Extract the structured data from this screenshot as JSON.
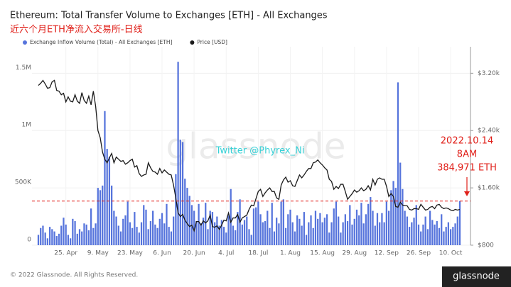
{
  "chart_data": {
    "type": "bar",
    "title": "Ethereum: Total Transfer Volume to Exchanges [ETH] - All Exchanges",
    "subtitle": "近六个月ETH净流入交易所-日线",
    "watermark": "glassnode",
    "overlay_text": "Twitter @Phyrex_Ni",
    "annotations": [
      "2022.10.14",
      "8AM",
      "384,971 ETH"
    ],
    "footer": "© 2022 Glassnode. All Rights Reserved.",
    "logo": "glassnode",
    "grid": true,
    "categories": [
      null,
      null,
      null,
      null,
      null,
      null,
      null,
      null,
      null,
      null,
      null,
      null,
      "25. Apr",
      null,
      null,
      null,
      null,
      null,
      null,
      null,
      null,
      null,
      null,
      null,
      null,
      null,
      "9. May",
      null,
      null,
      null,
      null,
      null,
      null,
      null,
      null,
      null,
      null,
      null,
      null,
      null,
      "23. May",
      null,
      null,
      null,
      null,
      null,
      null,
      null,
      null,
      null,
      null,
      null,
      null,
      null,
      "6. Jun",
      null,
      null,
      null,
      null,
      null,
      null,
      null,
      null,
      null,
      null,
      null,
      null,
      null,
      "20. Jun",
      null,
      null,
      null,
      null,
      null,
      null,
      null,
      null,
      null,
      null,
      null,
      null,
      null,
      "4. Jul",
      null,
      null,
      null,
      null,
      null,
      null,
      null,
      null,
      null,
      null,
      null,
      null,
      null,
      "18. Jul",
      null,
      null,
      null,
      null,
      null,
      null,
      null,
      null,
      null,
      null,
      null,
      null,
      null,
      "1. Aug",
      null,
      null,
      null,
      null,
      null,
      null,
      null,
      null,
      null,
      null,
      null,
      null,
      null,
      "15. Aug",
      null,
      null,
      null,
      null,
      null,
      null,
      null,
      null,
      null,
      null,
      null,
      null,
      null,
      "29. Aug",
      null,
      null,
      null,
      null,
      null,
      null,
      null,
      null,
      null,
      null,
      null,
      null,
      null,
      "12. Sep",
      null,
      null,
      null,
      null,
      null,
      null,
      null,
      null,
      null,
      null,
      null,
      null,
      null,
      "26. Sep",
      null,
      null,
      null,
      null,
      null,
      null,
      null,
      null,
      null,
      null,
      null,
      null,
      null,
      "10. Oct",
      null,
      null,
      null,
      null
    ],
    "ylim": [
      0,
      1700000
    ],
    "yticks": [
      {
        "value": 0,
        "label": "0"
      },
      {
        "value": 500000,
        "label": "500K"
      },
      {
        "value": 1000000,
        "label": "1M"
      },
      {
        "value": 1500000,
        "label": "1.5M"
      }
    ],
    "y2lim": [
      800,
      3520
    ],
    "y2ticks": [
      {
        "value": 800,
        "label": "$800"
      },
      {
        "value": 1600,
        "label": "$1.60k"
      },
      {
        "value": 2400,
        "label": "$2.40k"
      },
      {
        "value": 3200,
        "label": "$3.20k"
      }
    ],
    "series": [
      {
        "name": "Exchange Inflow Volume (Total) - All Exchanges [ETH]",
        "type": "bar",
        "color": "#5674dc",
        "values": [
          90000,
          150000,
          170000,
          110000,
          60000,
          160000,
          140000,
          120000,
          80000,
          100000,
          170000,
          240000,
          180000,
          90000,
          60000,
          230000,
          210000,
          100000,
          140000,
          120000,
          190000,
          180000,
          130000,
          320000,
          150000,
          190000,
          500000,
          480000,
          520000,
          1170000,
          840000,
          770000,
          520000,
          300000,
          250000,
          170000,
          120000,
          230000,
          260000,
          380000,
          200000,
          150000,
          290000,
          160000,
          110000,
          200000,
          350000,
          310000,
          140000,
          210000,
          300000,
          180000,
          150000,
          230000,
          280000,
          190000,
          360000,
          160000,
          120000,
          250000,
          620000,
          1600000,
          920000,
          900000,
          580000,
          500000,
          430000,
          350000,
          300000,
          210000,
          360000,
          190000,
          240000,
          370000,
          140000,
          300000,
          290000,
          200000,
          250000,
          170000,
          220000,
          160000,
          110000,
          260000,
          490000,
          170000,
          130000,
          290000,
          400000,
          180000,
          220000,
          250000,
          140000,
          90000,
          320000,
          330000,
          380000,
          270000,
          200000,
          210000,
          300000,
          150000,
          370000,
          120000,
          240000,
          190000,
          380000,
          400000,
          150000,
          270000,
          310000,
          200000,
          120000,
          260000,
          230000,
          170000,
          290000,
          90000,
          200000,
          260000,
          150000,
          300000,
          230000,
          280000,
          200000,
          240000,
          270000,
          110000,
          200000,
          320000,
          380000,
          250000,
          110000,
          200000,
          270000,
          210000,
          350000,
          180000,
          230000,
          310000,
          260000,
          370000,
          190000,
          270000,
          360000,
          420000,
          300000,
          170000,
          280000,
          200000,
          280000,
          200000,
          380000,
          300000,
          480000,
          560000,
          500000,
          1420000,
          720000,
          490000,
          300000,
          250000,
          160000,
          200000,
          240000,
          350000,
          180000,
          120000,
          180000,
          250000,
          140000,
          300000,
          220000,
          180000,
          210000,
          150000,
          270000,
          120000,
          160000,
          200000,
          140000,
          160000,
          190000,
          250000,
          384971
        ]
      },
      {
        "name": "Price [USD]",
        "type": "line",
        "axis": "y2",
        "color": "#1a1a1a",
        "values": [
          3030,
          3060,
          3100,
          3050,
          2990,
          3000,
          3080,
          3100,
          2960,
          2950,
          2900,
          2920,
          2800,
          2870,
          2810,
          2800,
          2900,
          2810,
          2780,
          2930,
          2820,
          2780,
          2880,
          2760,
          2950,
          2740,
          2400,
          2300,
          2100,
          2000,
          1950,
          2020,
          2080,
          1950,
          2030,
          2000,
          1970,
          1980,
          1930,
          1950,
          1980,
          2000,
          1890,
          1910,
          1800,
          1760,
          1780,
          1790,
          1950,
          1880,
          1830,
          1820,
          1790,
          1870,
          1810,
          1850,
          1820,
          1790,
          1780,
          1640,
          1460,
          1250,
          1200,
          1230,
          1150,
          1100,
          1060,
          1080,
          1000,
          1130,
          1130,
          1080,
          1140,
          1110,
          1140,
          1220,
          1060,
          1050,
          1070,
          1020,
          1080,
          1150,
          1140,
          1250,
          1120,
          1180,
          1180,
          1230,
          1120,
          1180,
          1200,
          1220,
          1300,
          1360,
          1350,
          1450,
          1550,
          1580,
          1480,
          1530,
          1570,
          1600,
          1550,
          1550,
          1460,
          1440,
          1640,
          1710,
          1750,
          1680,
          1700,
          1630,
          1620,
          1700,
          1780,
          1740,
          1780,
          1830,
          1870,
          1870,
          1950,
          1960,
          1990,
          1950,
          1920,
          1880,
          1850,
          1720,
          1690,
          1580,
          1620,
          1590,
          1650,
          1650,
          1550,
          1440,
          1480,
          1520,
          1570,
          1540,
          1560,
          1600,
          1560,
          1580,
          1630,
          1570,
          1720,
          1640,
          1720,
          1740,
          1720,
          1720,
          1620,
          1480,
          1520,
          1480,
          1340,
          1330,
          1400,
          1360,
          1350,
          1350,
          1300,
          1290,
          1310,
          1310,
          1300,
          1370,
          1330,
          1290,
          1300,
          1330,
          1340,
          1310,
          1360,
          1370,
          1330,
          1310,
          1320,
          1310,
          1290,
          1280,
          1300,
          1290,
          1300
        ]
      }
    ]
  }
}
